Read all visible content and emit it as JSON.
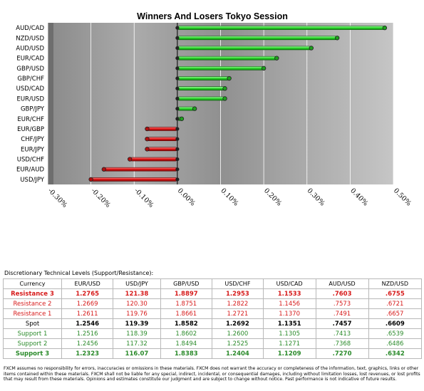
{
  "chart_data": {
    "type": "bar",
    "orientation": "horizontal",
    "title": "Winners And Losers Tokyo Session",
    "categories": [
      "AUD/CAD",
      "NZD/USD",
      "AUD/USD",
      "EUR/CAD",
      "GBP/USD",
      "GBP/CHF",
      "USD/CAD",
      "EUR/USD",
      "GBP/JPY",
      "EUR/CHF",
      "EUR/GBP",
      "CHF/JPY",
      "EUR/JPY",
      "USD/CHF",
      "EUR/AUD",
      "USD/JPY"
    ],
    "values": [
      0.48,
      0.37,
      0.31,
      0.23,
      0.2,
      0.12,
      0.11,
      0.11,
      0.04,
      0.01,
      -0.07,
      -0.07,
      -0.07,
      -0.11,
      -0.17,
      -0.2
    ],
    "xlim": [
      -0.3,
      0.5
    ],
    "xticks": [
      -0.3,
      -0.2,
      -0.1,
      0.0,
      0.1,
      0.2,
      0.3,
      0.4,
      0.5
    ],
    "xtick_labels": [
      "-0.30%",
      "-0.20%",
      "-0.10%",
      "0.00%",
      "0.10%",
      "0.20%",
      "0.30%",
      "0.40%",
      "0.50%"
    ],
    "grid": true,
    "colors": {
      "positive": "#2fdc2f",
      "negative": "#e01818"
    }
  },
  "levels": {
    "title": "Discretionary Technical Levels (Support/Resistance):",
    "header": [
      "Currency",
      "EUR/USD",
      "USD/JPY",
      "GBP/USD",
      "USD/CHF",
      "USD/CAD",
      "AUD/USD",
      "NZD/USD"
    ],
    "rows": [
      {
        "label": "Resistance 3",
        "values": [
          "1.2765",
          "121.38",
          "1.8897",
          "1.2953",
          "1.1533",
          ".7603",
          ".6755"
        ]
      },
      {
        "label": "Resistance 2",
        "values": [
          "1.2669",
          "120.30",
          "1.8751",
          "1.2822",
          "1.1456",
          ".7573",
          ".6721"
        ]
      },
      {
        "label": "Resistance 1",
        "values": [
          "1.2611",
          "119.76",
          "1.8661",
          "1.2721",
          "1.1370",
          ".7491",
          ".6657"
        ]
      },
      {
        "label": "Spot",
        "values": [
          "1.2546",
          "119.39",
          "1.8582",
          "1.2692",
          "1.1351",
          ".7457",
          ".6609"
        ]
      },
      {
        "label": "Support 1",
        "values": [
          "1.2516",
          "118.39",
          "1.8602",
          "1.2600",
          "1.1305",
          ".7413",
          ".6539"
        ]
      },
      {
        "label": "Support 2",
        "values": [
          "1.2456",
          "117.32",
          "1.8494",
          "1.2525",
          "1.1271",
          ".7368",
          ".6486"
        ]
      },
      {
        "label": "Support 3",
        "values": [
          "1.2323",
          "116.07",
          "1.8383",
          "1.2404",
          "1.1209",
          ".7270",
          ".6342"
        ]
      }
    ]
  },
  "disclaimer": "FXCM assumes no responsibility for errors, inaccuracies or omissions in these materials. FXCM does not warrant the accuracy or completeness of the information, text, graphics, links or other items contained within these materials. FXCM shall not be liable for any special, indirect, incidental, or consequential damages, including without limitation losses, lost revenues, or lost profits that may result from these materials. Opinions and estimates constitute our judgment and are subject to change without notice. Past performance is not indicative of future results."
}
